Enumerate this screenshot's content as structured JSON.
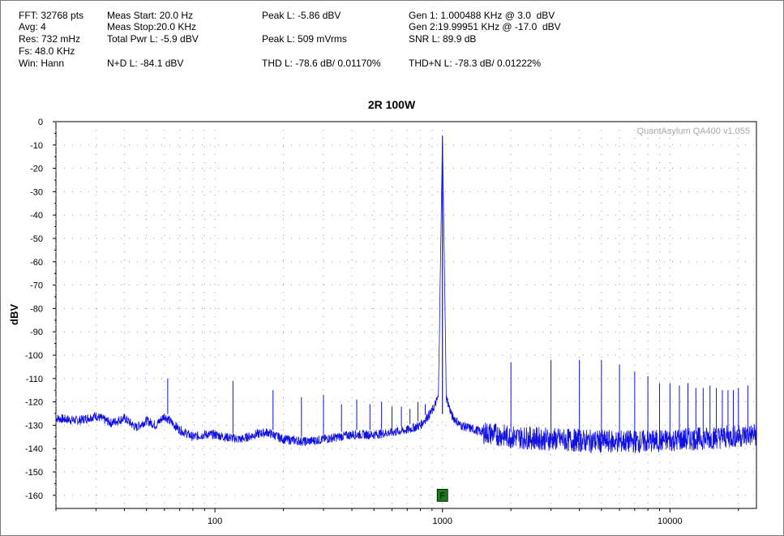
{
  "header": {
    "col1": [
      "FFT: 32768 pts",
      "Avg: 4",
      "Res: 732 mHz",
      "Fs: 48.0 KHz",
      "Win: Hann"
    ],
    "col2": [
      "Meas Start: 20.0 Hz",
      "Meas Stop:20.0 KHz",
      "Total Pwr L: -5.9 dBV",
      "N+D L: -84.1 dBV"
    ],
    "col3": [
      "Peak L: -5.86 dBV",
      "Peak L: 509 mVrms",
      "THD L: -78.6 dB/ 0.01170%"
    ],
    "col4": [
      "Gen 1: 1.000488 KHz @ 3.0  dBV",
      "Gen 2:19.99951 KHz @ -17.0  dBV",
      "SNR L: 89.9 dB",
      "THD+N L: -78.3 dB/ 0.01222%"
    ]
  },
  "watermark": "QuantAsylum QA400 v1.055",
  "marker_label": "F",
  "colors": {
    "trace": "#1010e0",
    "marker": "#1a7a1a",
    "grid": "#9a9a9a"
  },
  "chart_data": {
    "type": "line",
    "title": "2R 100W",
    "xlabel": "",
    "ylabel": "dBV",
    "xscale": "log",
    "xlim": [
      20,
      24000
    ],
    "ylim": [
      -165,
      0
    ],
    "x_tick_labels": [
      "100",
      "1000",
      "10000"
    ],
    "y_ticks": [
      0,
      -10,
      -20,
      -30,
      -40,
      -50,
      -60,
      -70,
      -80,
      -90,
      -100,
      -110,
      -120,
      -130,
      -140,
      -150,
      -160
    ],
    "grid": true,
    "marker": {
      "x": 1000,
      "y": -160
    },
    "series": [
      {
        "noise_floor": [
          [
            20,
            -127
          ],
          [
            25,
            -128
          ],
          [
            30,
            -126
          ],
          [
            35,
            -129
          ],
          [
            40,
            -127
          ],
          [
            45,
            -131
          ],
          [
            50,
            -128
          ],
          [
            55,
            -130
          ],
          [
            60,
            -126
          ],
          [
            70,
            -132
          ],
          [
            80,
            -135
          ],
          [
            90,
            -134
          ],
          [
            100,
            -134
          ],
          [
            110,
            -135
          ],
          [
            130,
            -136
          ],
          [
            150,
            -134
          ],
          [
            170,
            -133
          ],
          [
            200,
            -136
          ],
          [
            250,
            -137
          ],
          [
            300,
            -136
          ],
          [
            350,
            -135
          ],
          [
            400,
            -134
          ],
          [
            500,
            -134
          ],
          [
            600,
            -133
          ],
          [
            700,
            -132
          ],
          [
            800,
            -130
          ],
          [
            900,
            -124
          ],
          [
            960,
            -118
          ],
          [
            1000,
            -6
          ],
          [
            1040,
            -118
          ],
          [
            1100,
            -126
          ],
          [
            1200,
            -130
          ],
          [
            1500,
            -133
          ],
          [
            2000,
            -135
          ],
          [
            3000,
            -136
          ],
          [
            5000,
            -137
          ],
          [
            8000,
            -137
          ],
          [
            12000,
            -136
          ],
          [
            18000,
            -135
          ],
          [
            24000,
            -134
          ]
        ],
        "spurs": [
          [
            62,
            -110
          ],
          [
            120,
            -111
          ],
          [
            180,
            -115
          ],
          [
            240,
            -118
          ],
          [
            300,
            -117
          ],
          [
            360,
            -121
          ],
          [
            420,
            -119
          ],
          [
            480,
            -121
          ],
          [
            540,
            -120
          ],
          [
            600,
            -122
          ],
          [
            660,
            -122
          ],
          [
            720,
            -123
          ],
          [
            780,
            -120
          ],
          [
            840,
            -121
          ],
          [
            2000,
            -103
          ],
          [
            3000,
            -102
          ],
          [
            4000,
            -102
          ],
          [
            5000,
            -102
          ],
          [
            6000,
            -104
          ],
          [
            7000,
            -107
          ],
          [
            8000,
            -109
          ],
          [
            9000,
            -112
          ],
          [
            10000,
            -112
          ],
          [
            11000,
            -113
          ],
          [
            12000,
            -112
          ],
          [
            13000,
            -114
          ],
          [
            14000,
            -114
          ],
          [
            15000,
            -113
          ],
          [
            16000,
            -114
          ],
          [
            17000,
            -115
          ],
          [
            18000,
            -115
          ],
          [
            19000,
            -115
          ],
          [
            20000,
            -114
          ],
          [
            22000,
            -113
          ]
        ]
      }
    ]
  }
}
